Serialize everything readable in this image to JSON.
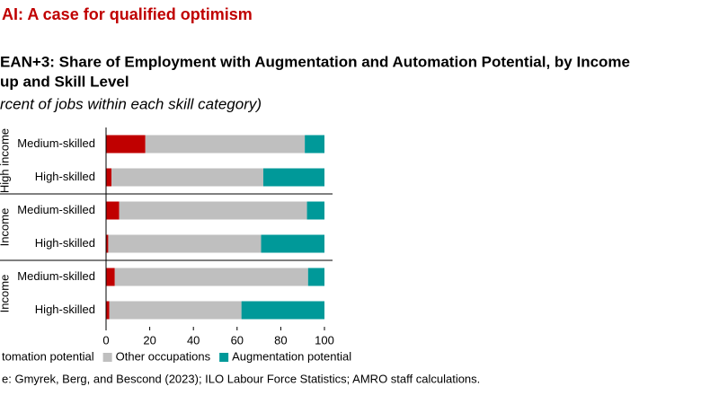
{
  "chart_data": {
    "type": "stacked-bar-horizontal",
    "header": "AI: A case for qualified optimism",
    "title": [
      "EAN+3: Share of Employment with Augmentation and Automation Potential, by Income",
      "up and Skill Level"
    ],
    "subtitle": "rcent of jobs within each skill category)",
    "groups": [
      "High income",
      "Income",
      "Income"
    ],
    "categories": [
      "Medium-skilled",
      "High-skilled",
      "Medium-skilled",
      "High-skilled",
      "Medium-skilled",
      "High-skilled"
    ],
    "series": [
      {
        "name": "tomation potential",
        "color": "#c00000",
        "values": [
          18,
          2.5,
          6,
          1,
          4,
          1.5
        ]
      },
      {
        "name": "Other occupations",
        "color": "#bfbfbf",
        "values": [
          73,
          69.5,
          86,
          70,
          88.5,
          60.5
        ]
      },
      {
        "name": "Augmentation potential",
        "color": "#009999",
        "values": [
          9,
          28,
          8,
          29,
          7.5,
          38
        ]
      }
    ],
    "xlim": [
      0,
      100
    ],
    "xticks": [
      0,
      20,
      40,
      60,
      80,
      100
    ],
    "source": "e: Gmyrek, Berg, and Bescond (2023); ILO Labour Force Statistics; AMRO staff calculations."
  }
}
